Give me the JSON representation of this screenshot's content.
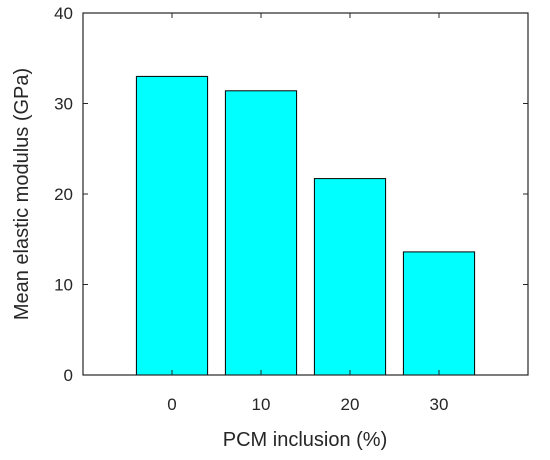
{
  "chart_data": {
    "type": "bar",
    "categories": [
      "0",
      "10",
      "20",
      "30"
    ],
    "values": [
      33.0,
      31.4,
      21.7,
      13.6
    ],
    "xlabel": "PCM inclusion (%)",
    "ylabel": "Mean elastic modulus (GPa)",
    "ylim": [
      0,
      40
    ],
    "yticks": [
      "0",
      "10",
      "20",
      "30",
      "40"
    ],
    "grid": false,
    "legend": "none",
    "bar_color": "#00FFFF",
    "edge_color": "#000000"
  }
}
